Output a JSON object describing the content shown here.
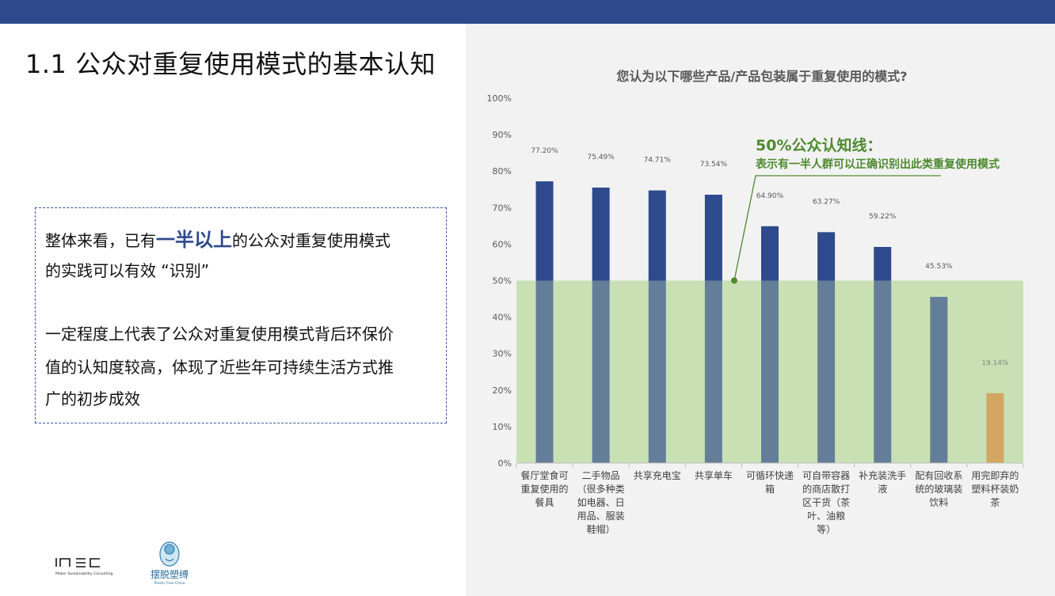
{
  "page": {
    "title": "1.1 公众对重复使用模式的基本认知"
  },
  "summary": {
    "line1_before": "整体来看，已有",
    "line1_emph": "一半以上",
    "line1_after": "的公众对重复使用模式",
    "line2": "的实践可以有效 “识别”",
    "line3": "一定程度上代表了公众对重复使用模式背后环保价",
    "line4": "值的认知度较高，体现了近些年可持续生活方式推",
    "line5": "广的初步成效"
  },
  "logos": {
    "msc_text": "Maker Sustainability Consulting",
    "pfc_cn": "摆脱塑缚",
    "pfc_en": "Plastic Free China"
  },
  "colors": {
    "header": "#2e4a8c",
    "bar_main": "#2e4a8c",
    "bar_highlight": "#d9883a",
    "band": "#c9e0b4",
    "annotation": "#4e8a2e"
  },
  "chart_data": {
    "type": "bar",
    "title": "您认为以下哪些产品/产品包装属于重复使用的模式?",
    "categories": [
      "餐厅堂食可重复使用的餐具",
      "二手物品（很多种类如电器、日用品、服装鞋帽）",
      "共享充电宝",
      "共享单车",
      "可循环快递箱",
      "可自带容器的商店散打区干货（茶叶、油粮等）",
      "补充装洗手液",
      "配有回收系统的玻璃装饮料",
      "用完即弃的塑料杯装奶茶"
    ],
    "category_lines": [
      [
        "餐厅堂食可",
        "重复使用的",
        "餐具"
      ],
      [
        "二手物品",
        "（很多种类",
        "如电器、日",
        "用品、服装",
        "鞋帽）"
      ],
      [
        "共享充电宝"
      ],
      [
        "共享单车"
      ],
      [
        "可循环快递",
        "箱"
      ],
      [
        "可自带容器",
        "的商店散打",
        "区干货（茶",
        "叶、油粮",
        "等）"
      ],
      [
        "补充装洗手",
        "液"
      ],
      [
        "配有回收系",
        "统的玻璃装",
        "饮料"
      ],
      [
        "用完即弃的",
        "塑料杯装奶",
        "茶"
      ]
    ],
    "values": [
      77.2,
      75.49,
      74.71,
      73.54,
      64.9,
      63.27,
      59.22,
      45.53,
      19.14
    ],
    "value_labels": [
      "77.20%",
      "75.49%",
      "74.71%",
      "73.54%",
      "64.90%",
      "63.27%",
      "59.22%",
      "45.53%",
      "19.14%"
    ],
    "highlight_index": 8,
    "ylim": [
      0,
      100
    ],
    "yticks": [
      0,
      10,
      20,
      30,
      40,
      50,
      60,
      70,
      80,
      90,
      100
    ],
    "ytick_labels": [
      "0%",
      "10%",
      "20%",
      "30%",
      "40%",
      "50%",
      "60%",
      "70%",
      "80%",
      "90%",
      "100%"
    ],
    "threshold": 50,
    "annotation_title": "50%公众认知线：",
    "annotation_text": "表示有一半人群可以正确识别出此类重复使用模式",
    "grid": false
  }
}
